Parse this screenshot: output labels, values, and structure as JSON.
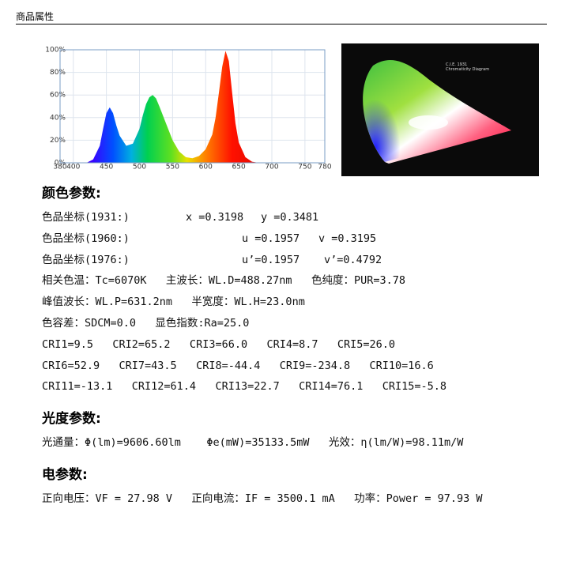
{
  "header": {
    "title": "商品属性"
  },
  "chart_data": {
    "type": "area",
    "x": [
      380,
      420,
      430,
      440,
      445,
      450,
      455,
      460,
      465,
      470,
      480,
      490,
      500,
      505,
      510,
      515,
      520,
      525,
      530,
      540,
      550,
      560,
      570,
      580,
      590,
      600,
      610,
      615,
      620,
      625,
      630,
      635,
      640,
      645,
      650,
      660,
      670,
      680,
      780
    ],
    "values": [
      0,
      0,
      3,
      15,
      30,
      44,
      49,
      44,
      33,
      24,
      15,
      17,
      30,
      42,
      52,
      58,
      60,
      57,
      50,
      35,
      20,
      10,
      5,
      4,
      6,
      12,
      25,
      40,
      62,
      85,
      99,
      90,
      62,
      35,
      18,
      5,
      1,
      0,
      0
    ],
    "xlim": [
      380,
      780
    ],
    "ylim": [
      0,
      100
    ],
    "xticks": [
      380,
      400,
      450,
      500,
      550,
      600,
      650,
      700,
      750,
      780
    ],
    "yticks": [
      {
        "value": 0,
        "label": "0%"
      },
      {
        "value": 20,
        "label": "20%"
      },
      {
        "value": 40,
        "label": "40%"
      },
      {
        "value": 60,
        "label": "60%"
      },
      {
        "value": 80,
        "label": "80%"
      },
      {
        "value": 100,
        "label": "100%"
      }
    ],
    "grid": true
  },
  "cie_diagram": {
    "title": "C.I.E. 1931",
    "subtitle": "Chromaticity Diagram"
  },
  "sections": [
    {
      "title": "颜色参数:",
      "rows": [
        [
          "色品坐标(1931:)",
          "x =0.3198",
          "y =0.3481"
        ],
        [
          "色品坐标(1960:)",
          "u =0.1957",
          "v =0.3195"
        ],
        [
          "色品坐标(1976:)",
          "u’=0.1957",
          "v’=0.4792"
        ],
        [
          "相关色温：Tc=6070K   主波长：WL.D=488.27nm   色纯度：PUR=3.78"
        ],
        [
          "峰值波长：WL.P=631.2nm   半宽度：WL.H=23.0nm"
        ],
        [
          "色容差：SDCM=0.0   显色指数:Ra=25.0"
        ],
        [
          "CRI1=9.5   CRI2=65.2   CRI3=66.0   CRI4=8.7   CRI5=26.0"
        ],
        [
          "CRI6=52.9   CRI7=43.5   CRI8=-44.4   CRI9=-234.8   CRI10=16.6"
        ],
        [
          "CRI11=-13.1   CRI12=61.4   CRI13=22.7   CRI14=76.1   CRI15=-5.8"
        ]
      ]
    },
    {
      "title": "光度参数:",
      "rows": [
        [
          "光通量：Φ(lm)=9606.60lm    Φe(mW)=35133.5mW   光效：η(lm/W)=98.11m/W"
        ]
      ]
    },
    {
      "title": "电参数:",
      "rows": [
        [
          "正向电压：VF = 27.98 V   正向电流：IF = 3500.1 mA   功率：Power = 97.93 W"
        ]
      ]
    }
  ]
}
